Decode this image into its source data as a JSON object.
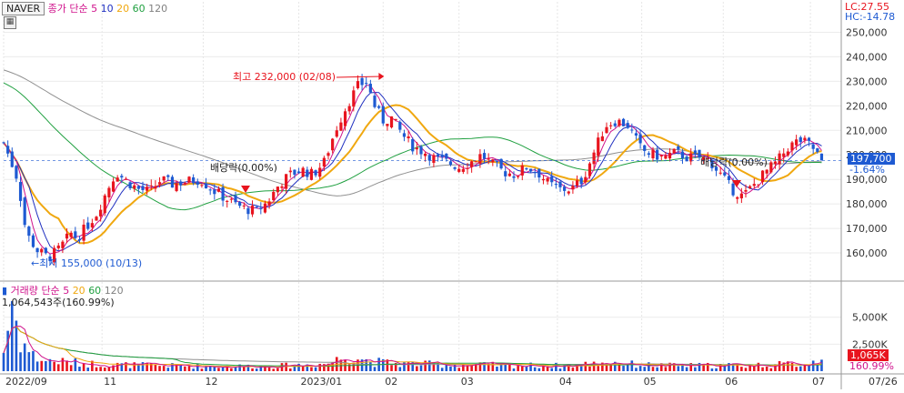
{
  "symbol": "NAVER",
  "price_legend": {
    "type": "종가",
    "ma_kind": "단순",
    "periods": [
      "5",
      "10",
      "20",
      "60",
      "120"
    ]
  },
  "volume_legend": {
    "label": "거래량",
    "ma_kind": "단순",
    "periods": [
      "5",
      "20",
      "60",
      "120"
    ]
  },
  "volume_readout": "1,064,543주(160.99%)",
  "lc": "LC:27.55",
  "hc": "HC:-14.78",
  "current_price": "197,700",
  "current_change": "-1.64%",
  "current_volume": "1,065K",
  "current_volume_pct": "160.99%",
  "high_annotation": "최고 232,000 (02/08)",
  "low_annotation": "←최저 155,000 (10/13)",
  "dividend_1": "배당락(0.00%)",
  "dividend_2": "배당락(0.00%)",
  "colors": {
    "up": "#e8141e",
    "down": "#1e5ad2",
    "ma5": "#d0138c",
    "ma10": "#2030c0",
    "ma20": "#f0a810",
    "ma60": "#20a040",
    "ma120": "#909090",
    "vma5": "#d0138c",
    "vma20": "#f0a810",
    "vma60": "#20a040",
    "vma120": "#909090",
    "axis_box_price": "#1e5ad2",
    "axis_box_volume": "#e8141e"
  },
  "chart_data": {
    "type": "candlestick",
    "price_axis": {
      "ticks": [
        "250,000",
        "240,000",
        "230,000",
        "220,000",
        "210,000",
        "200,000",
        "190,000",
        "180,000",
        "170,000",
        "160,000"
      ],
      "ylim": [
        150000,
        255000
      ]
    },
    "volume_axis": {
      "ticks": [
        "5,000K",
        "2,500K"
      ],
      "ylim": [
        0,
        7000
      ]
    },
    "x_ticks": [
      "2022/09",
      "11",
      "12",
      "2023/01",
      "02",
      "03",
      "04",
      "05",
      "06",
      "07",
      "07/26"
    ],
    "x_tick_days": [
      0,
      35,
      71,
      105,
      135,
      162,
      197,
      227,
      256,
      287,
      319
    ],
    "high": {
      "date": "02/08",
      "value": 232000
    },
    "low": {
      "date": "10/13",
      "value": 155000
    },
    "last": {
      "close": 197700,
      "change_pct": -1.64,
      "volume_k": 1065,
      "volume_pct": 160.99
    },
    "close_anchors": [
      [
        0,
        205000
      ],
      [
        5,
        190000
      ],
      [
        8,
        168000
      ],
      [
        12,
        161000
      ],
      [
        16,
        158000
      ],
      [
        20,
        162000
      ],
      [
        24,
        168000
      ],
      [
        26,
        166000
      ],
      [
        29,
        170000
      ],
      [
        33,
        176000
      ],
      [
        37,
        186000
      ],
      [
        40,
        193000
      ],
      [
        44,
        189000
      ],
      [
        48,
        186000
      ],
      [
        52,
        185000
      ],
      [
        56,
        190000
      ],
      [
        60,
        188000
      ],
      [
        64,
        189000
      ],
      [
        70,
        190000
      ],
      [
        74,
        186000
      ],
      [
        78,
        183000
      ],
      [
        82,
        180000
      ],
      [
        86,
        178000
      ],
      [
        90,
        177000
      ],
      [
        94,
        181000
      ],
      [
        98,
        188000
      ],
      [
        102,
        192000
      ],
      [
        106,
        194000
      ],
      [
        110,
        192000
      ],
      [
        114,
        197000
      ],
      [
        118,
        210000
      ],
      [
        122,
        220000
      ],
      [
        126,
        228000
      ],
      [
        129,
        230000
      ],
      [
        132,
        220000
      ],
      [
        135,
        214000
      ],
      [
        138,
        215000
      ],
      [
        142,
        208000
      ],
      [
        146,
        203000
      ],
      [
        150,
        201000
      ],
      [
        154,
        198000
      ],
      [
        158,
        197000
      ],
      [
        162,
        195000
      ],
      [
        166,
        197000
      ],
      [
        170,
        200000
      ],
      [
        174,
        196000
      ],
      [
        178,
        193000
      ],
      [
        182,
        192000
      ],
      [
        186,
        195000
      ],
      [
        190,
        193000
      ],
      [
        194,
        188000
      ],
      [
        198,
        186000
      ],
      [
        202,
        186000
      ],
      [
        206,
        190000
      ],
      [
        210,
        201000
      ],
      [
        214,
        212000
      ],
      [
        218,
        214000
      ],
      [
        222,
        212000
      ],
      [
        224,
        208000
      ],
      [
        227,
        202000
      ],
      [
        231,
        200000
      ],
      [
        235,
        199000
      ],
      [
        239,
        201000
      ],
      [
        243,
        199000
      ],
      [
        247,
        199000
      ],
      [
        251,
        198000
      ],
      [
        255,
        192000
      ],
      [
        259,
        186000
      ],
      [
        263,
        183000
      ],
      [
        267,
        188000
      ],
      [
        271,
        193000
      ],
      [
        275,
        197000
      ],
      [
        279,
        203000
      ],
      [
        283,
        206000
      ],
      [
        287,
        204000
      ],
      [
        291,
        198000
      ]
    ],
    "volume_anchors_k": [
      [
        0,
        1800
      ],
      [
        3,
        6500
      ],
      [
        6,
        3000
      ],
      [
        10,
        1500
      ],
      [
        14,
        1000
      ],
      [
        20,
        900
      ],
      [
        30,
        700
      ],
      [
        40,
        600
      ],
      [
        60,
        500
      ],
      [
        80,
        450
      ],
      [
        100,
        500
      ],
      [
        115,
        700
      ],
      [
        120,
        1200
      ],
      [
        125,
        1500
      ],
      [
        130,
        900
      ],
      [
        140,
        700
      ],
      [
        160,
        600
      ],
      [
        180,
        550
      ],
      [
        200,
        500
      ],
      [
        210,
        700
      ],
      [
        215,
        900
      ],
      [
        225,
        600
      ],
      [
        240,
        500
      ],
      [
        260,
        550
      ],
      [
        275,
        600
      ],
      [
        285,
        700
      ],
      [
        291,
        1065
      ]
    ],
    "series": [
      "MA5",
      "MA10",
      "MA20",
      "MA60",
      "MA120"
    ]
  }
}
